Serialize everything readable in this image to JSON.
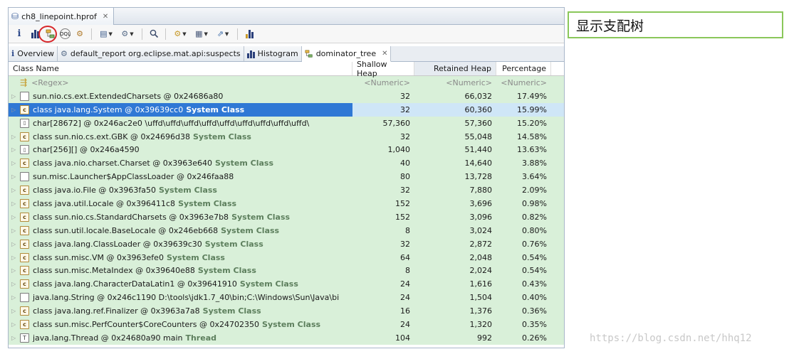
{
  "editor": {
    "file_tab": {
      "title": "ch8_linepoint.hprof",
      "close": "✕"
    }
  },
  "toolbar": {
    "buttons": [
      {
        "name": "overview-info-icon",
        "glyph": "i"
      },
      {
        "name": "histogram-icon",
        "glyph": ""
      },
      {
        "name": "dominator-tree-icon",
        "glyph": ""
      },
      {
        "name": "oql-icon",
        "glyph": "OQL"
      },
      {
        "name": "heap-dump-settings-icon",
        "glyph": "⚙"
      },
      {
        "name": "query-browser-icon",
        "glyph": "▤"
      },
      {
        "name": "run-report-icon",
        "glyph": "⚙"
      },
      {
        "name": "find-object-icon",
        "glyph": "🔍"
      },
      {
        "name": "group-by-icon",
        "glyph": "⚙"
      },
      {
        "name": "columns-icon",
        "glyph": "▦"
      },
      {
        "name": "export-icon",
        "glyph": "⇗"
      },
      {
        "name": "calculate-retained-icon",
        "glyph": "⇣"
      }
    ]
  },
  "view_tabs": [
    {
      "label": "Overview",
      "icon": "i"
    },
    {
      "label": "default_report  org.eclipse.mat.api:suspects",
      "icon": "⚙"
    },
    {
      "label": "Histogram",
      "icon": "▮"
    },
    {
      "label": "dominator_tree",
      "icon": "▦",
      "active": true
    }
  ],
  "table": {
    "columns": [
      "Class Name",
      "Shallow Heap",
      "Retained Heap",
      "Percentage"
    ],
    "filter_row": {
      "name": "<Regex>",
      "shallow": "<Numeric>",
      "retained": "<Numeric>",
      "pct": "<Numeric>"
    },
    "rows": [
      {
        "name": "sun.nio.cs.ext.ExtendedCharsets @ 0x24686a80",
        "system": "",
        "shallow": "32",
        "retained": "66,032",
        "pct": "17.49%",
        "icon": "object",
        "expand": true
      },
      {
        "name": "class java.lang.System @ 0x39639cc0",
        "system": "System Class",
        "shallow": "32",
        "retained": "60,360",
        "pct": "15.99%",
        "icon": "class",
        "expand": true,
        "selected": true
      },
      {
        "name": "char[28672] @ 0x246ac2e0  \\uffd\\uffd\\uffd\\uffd\\uffd\\uffd\\uffd\\uffd\\uffd\\",
        "system": "",
        "shallow": "57,360",
        "retained": "57,360",
        "pct": "15.20%",
        "icon": "array",
        "expand": false
      },
      {
        "name": "class sun.nio.cs.ext.GBK @ 0x24696d38",
        "system": "System Class",
        "shallow": "32",
        "retained": "55,048",
        "pct": "14.58%",
        "icon": "class",
        "expand": true
      },
      {
        "name": "char[256][] @ 0x246a4590",
        "system": "",
        "shallow": "1,040",
        "retained": "51,440",
        "pct": "13.63%",
        "icon": "array",
        "expand": true
      },
      {
        "name": "class java.nio.charset.Charset @ 0x3963e640",
        "system": "System Class",
        "shallow": "40",
        "retained": "14,640",
        "pct": "3.88%",
        "icon": "class",
        "expand": true
      },
      {
        "name": "sun.misc.Launcher$AppClassLoader @ 0x246faa88",
        "system": "",
        "shallow": "80",
        "retained": "13,728",
        "pct": "3.64%",
        "icon": "object",
        "expand": true
      },
      {
        "name": "class java.io.File @ 0x3963fa50",
        "system": "System Class",
        "shallow": "32",
        "retained": "7,880",
        "pct": "2.09%",
        "icon": "class",
        "expand": true
      },
      {
        "name": "class java.util.Locale @ 0x396411c8",
        "system": "System Class",
        "shallow": "152",
        "retained": "3,696",
        "pct": "0.98%",
        "icon": "class",
        "expand": true
      },
      {
        "name": "class sun.nio.cs.StandardCharsets @ 0x3963e7b8",
        "system": "System Class",
        "shallow": "152",
        "retained": "3,096",
        "pct": "0.82%",
        "icon": "class",
        "expand": true
      },
      {
        "name": "class sun.util.locale.BaseLocale @ 0x246eb668",
        "system": "System Class",
        "shallow": "8",
        "retained": "3,024",
        "pct": "0.80%",
        "icon": "class",
        "expand": true
      },
      {
        "name": "class java.lang.ClassLoader @ 0x39639c30",
        "system": "System Class",
        "shallow": "32",
        "retained": "2,872",
        "pct": "0.76%",
        "icon": "class",
        "expand": true
      },
      {
        "name": "class sun.misc.VM @ 0x3963efe0",
        "system": "System Class",
        "shallow": "64",
        "retained": "2,048",
        "pct": "0.54%",
        "icon": "class",
        "expand": true
      },
      {
        "name": "class sun.misc.MetaIndex @ 0x39640e88",
        "system": "System Class",
        "shallow": "8",
        "retained": "2,024",
        "pct": "0.54%",
        "icon": "class",
        "expand": true
      },
      {
        "name": "class java.lang.CharacterDataLatin1 @ 0x39641910",
        "system": "System Class",
        "shallow": "24",
        "retained": "1,616",
        "pct": "0.43%",
        "icon": "class",
        "expand": true
      },
      {
        "name": "java.lang.String @ 0x246c1190  D:\\tools\\jdk1.7_40\\bin;C:\\Windows\\Sun\\Java\\bi",
        "system": "",
        "shallow": "24",
        "retained": "1,504",
        "pct": "0.40%",
        "icon": "object",
        "expand": true
      },
      {
        "name": "class java.lang.ref.Finalizer @ 0x3963a7a8",
        "system": "System Class",
        "shallow": "16",
        "retained": "1,376",
        "pct": "0.36%",
        "icon": "class",
        "expand": true
      },
      {
        "name": "class sun.misc.PerfCounter$CoreCounters @ 0x24702350",
        "system": "System Class",
        "shallow": "24",
        "retained": "1,320",
        "pct": "0.35%",
        "icon": "class",
        "expand": true
      },
      {
        "name": "java.lang.Thread @ 0x24680a90  main",
        "system": "Thread",
        "shallow": "104",
        "retained": "992",
        "pct": "0.26%",
        "icon": "thread",
        "expand": true
      }
    ]
  },
  "annotation": {
    "text": "显示支配树"
  },
  "watermark": {
    "text": "https://blog.csdn.net/hhq12"
  },
  "colors": {
    "row_bg": "#d9f0d9",
    "selection": "#2f78d5",
    "highlight_ring": "#d7262a",
    "note_border": "#8ac75a"
  }
}
